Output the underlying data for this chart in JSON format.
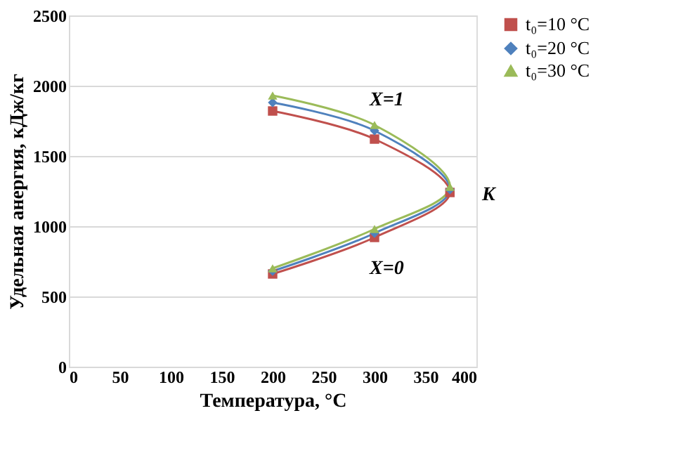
{
  "chart_data": {
    "type": "line",
    "xlabel": "Температура, °C",
    "ylabel": "Удельная анергия, кДж/кг",
    "x": [
      200,
      300,
      374,
      300,
      200
    ],
    "series": [
      {
        "name": "t₀=10 °C",
        "color": "#c0504d",
        "marker": "square",
        "values": [
          1820,
          1620,
          1240,
          920,
          660
        ]
      },
      {
        "name": "t₀=20 °C",
        "color": "#4f81bd",
        "marker": "diamond",
        "values": [
          1880,
          1680,
          1260,
          950,
          680
        ]
      },
      {
        "name": "t₀=30 °C",
        "color": "#9bbb59",
        "marker": "triangle",
        "values": [
          1930,
          1720,
          1280,
          980,
          700
        ]
      }
    ],
    "xlim": [
      0,
      400
    ],
    "xticks": [
      0,
      50,
      100,
      150,
      200,
      250,
      300,
      350,
      400
    ],
    "ylim": [
      0,
      2500
    ],
    "yticks": [
      0,
      500,
      1000,
      1500,
      2000,
      2500
    ],
    "grid": "y",
    "legend": "right",
    "line_style": "solid",
    "annotations": [
      "X=1",
      "K",
      "X=0"
    ]
  }
}
